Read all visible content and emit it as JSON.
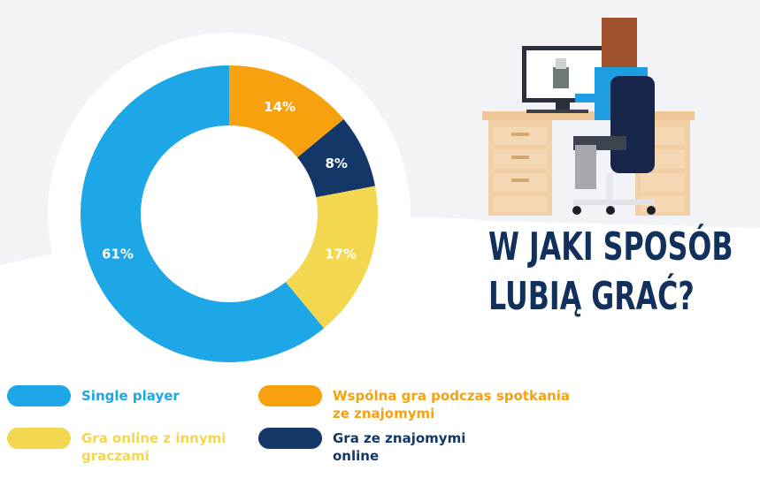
{
  "title_lines": [
    "W JAKI SPOSÓB",
    "LUBIĄ GRAĆ?"
  ],
  "colors": {
    "single_player": "#1ea7e6",
    "wspolna": "#f8a10f",
    "gra_znajomymi_online": "#133868",
    "gra_online": "#f2d74f",
    "headline": "#12305c"
  },
  "chart_data": {
    "type": "pie",
    "donut": true,
    "slices": [
      {
        "label": "Wspólna gra podczas spotkania ze znajomymi",
        "value": 14,
        "display": "14%",
        "color": "#f8a10f"
      },
      {
        "label": "Gra ze znajomymi online",
        "value": 8,
        "display": "8%",
        "color": "#133868"
      },
      {
        "label": "Gra online z innymi graczami",
        "value": 17,
        "display": "17%",
        "color": "#f2d74f"
      },
      {
        "label": "Single player",
        "value": 61,
        "display": "61%",
        "color": "#1ea7e6"
      }
    ],
    "legend": [
      {
        "lines": [
          "Single player"
        ],
        "color": "#1ea7e6",
        "text_color": "#1ea7e6"
      },
      {
        "lines": [
          "Wspólna gra podczas spotkania",
          "ze znajomymi"
        ],
        "color": "#f8a10f",
        "text_color": "#f8a10f"
      },
      {
        "lines": [
          "Gra online z innymi",
          "graczami"
        ],
        "color": "#f2d74f",
        "text_color": "#f2d74f"
      },
      {
        "lines": [
          "Gra ze znajomymi",
          "online"
        ],
        "color": "#133868",
        "text_color": "#133868"
      }
    ],
    "legend_placement": "bottom"
  }
}
